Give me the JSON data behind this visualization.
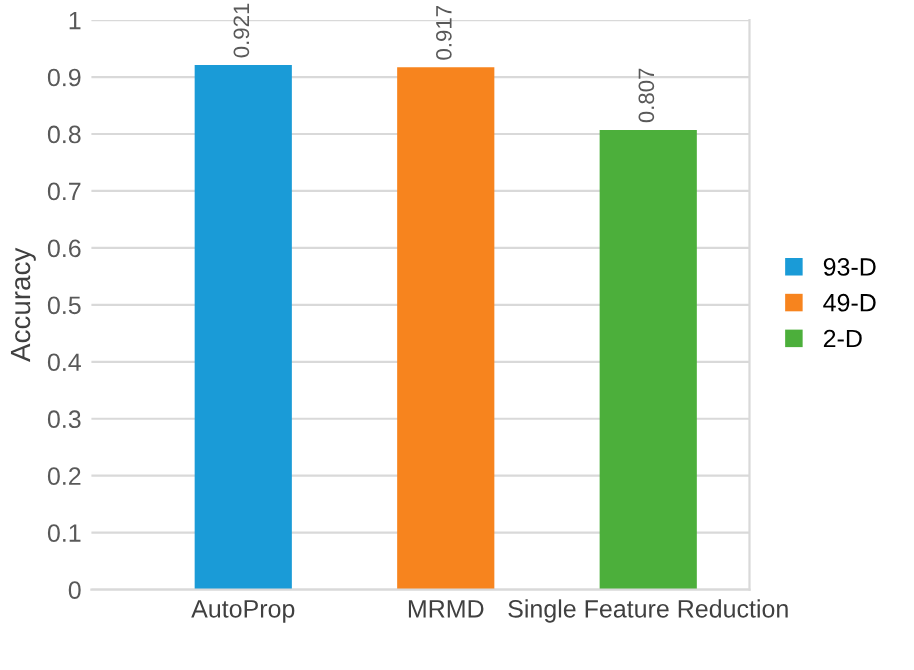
{
  "chart_data": {
    "type": "bar",
    "ylabel": "Accuracy",
    "categories": [
      "AutoProp",
      "MRMD",
      "Single Feature Reduction"
    ],
    "series": [
      {
        "name": "93-D",
        "color": "#1a9bd7",
        "values": [
          0.921,
          null,
          null
        ]
      },
      {
        "name": "49-D",
        "color": "#f7841e",
        "values": [
          null,
          0.917,
          null
        ]
      },
      {
        "name": "2-D",
        "color": "#4caf3b",
        "values": [
          null,
          null,
          0.807
        ]
      }
    ],
    "ylim": [
      0,
      1
    ],
    "yticks": [
      0,
      0.1,
      0.2,
      0.3,
      0.4,
      0.5,
      0.6,
      0.7,
      0.8,
      0.9,
      1
    ],
    "grid": "y",
    "legend": "right",
    "data_labels": true
  }
}
